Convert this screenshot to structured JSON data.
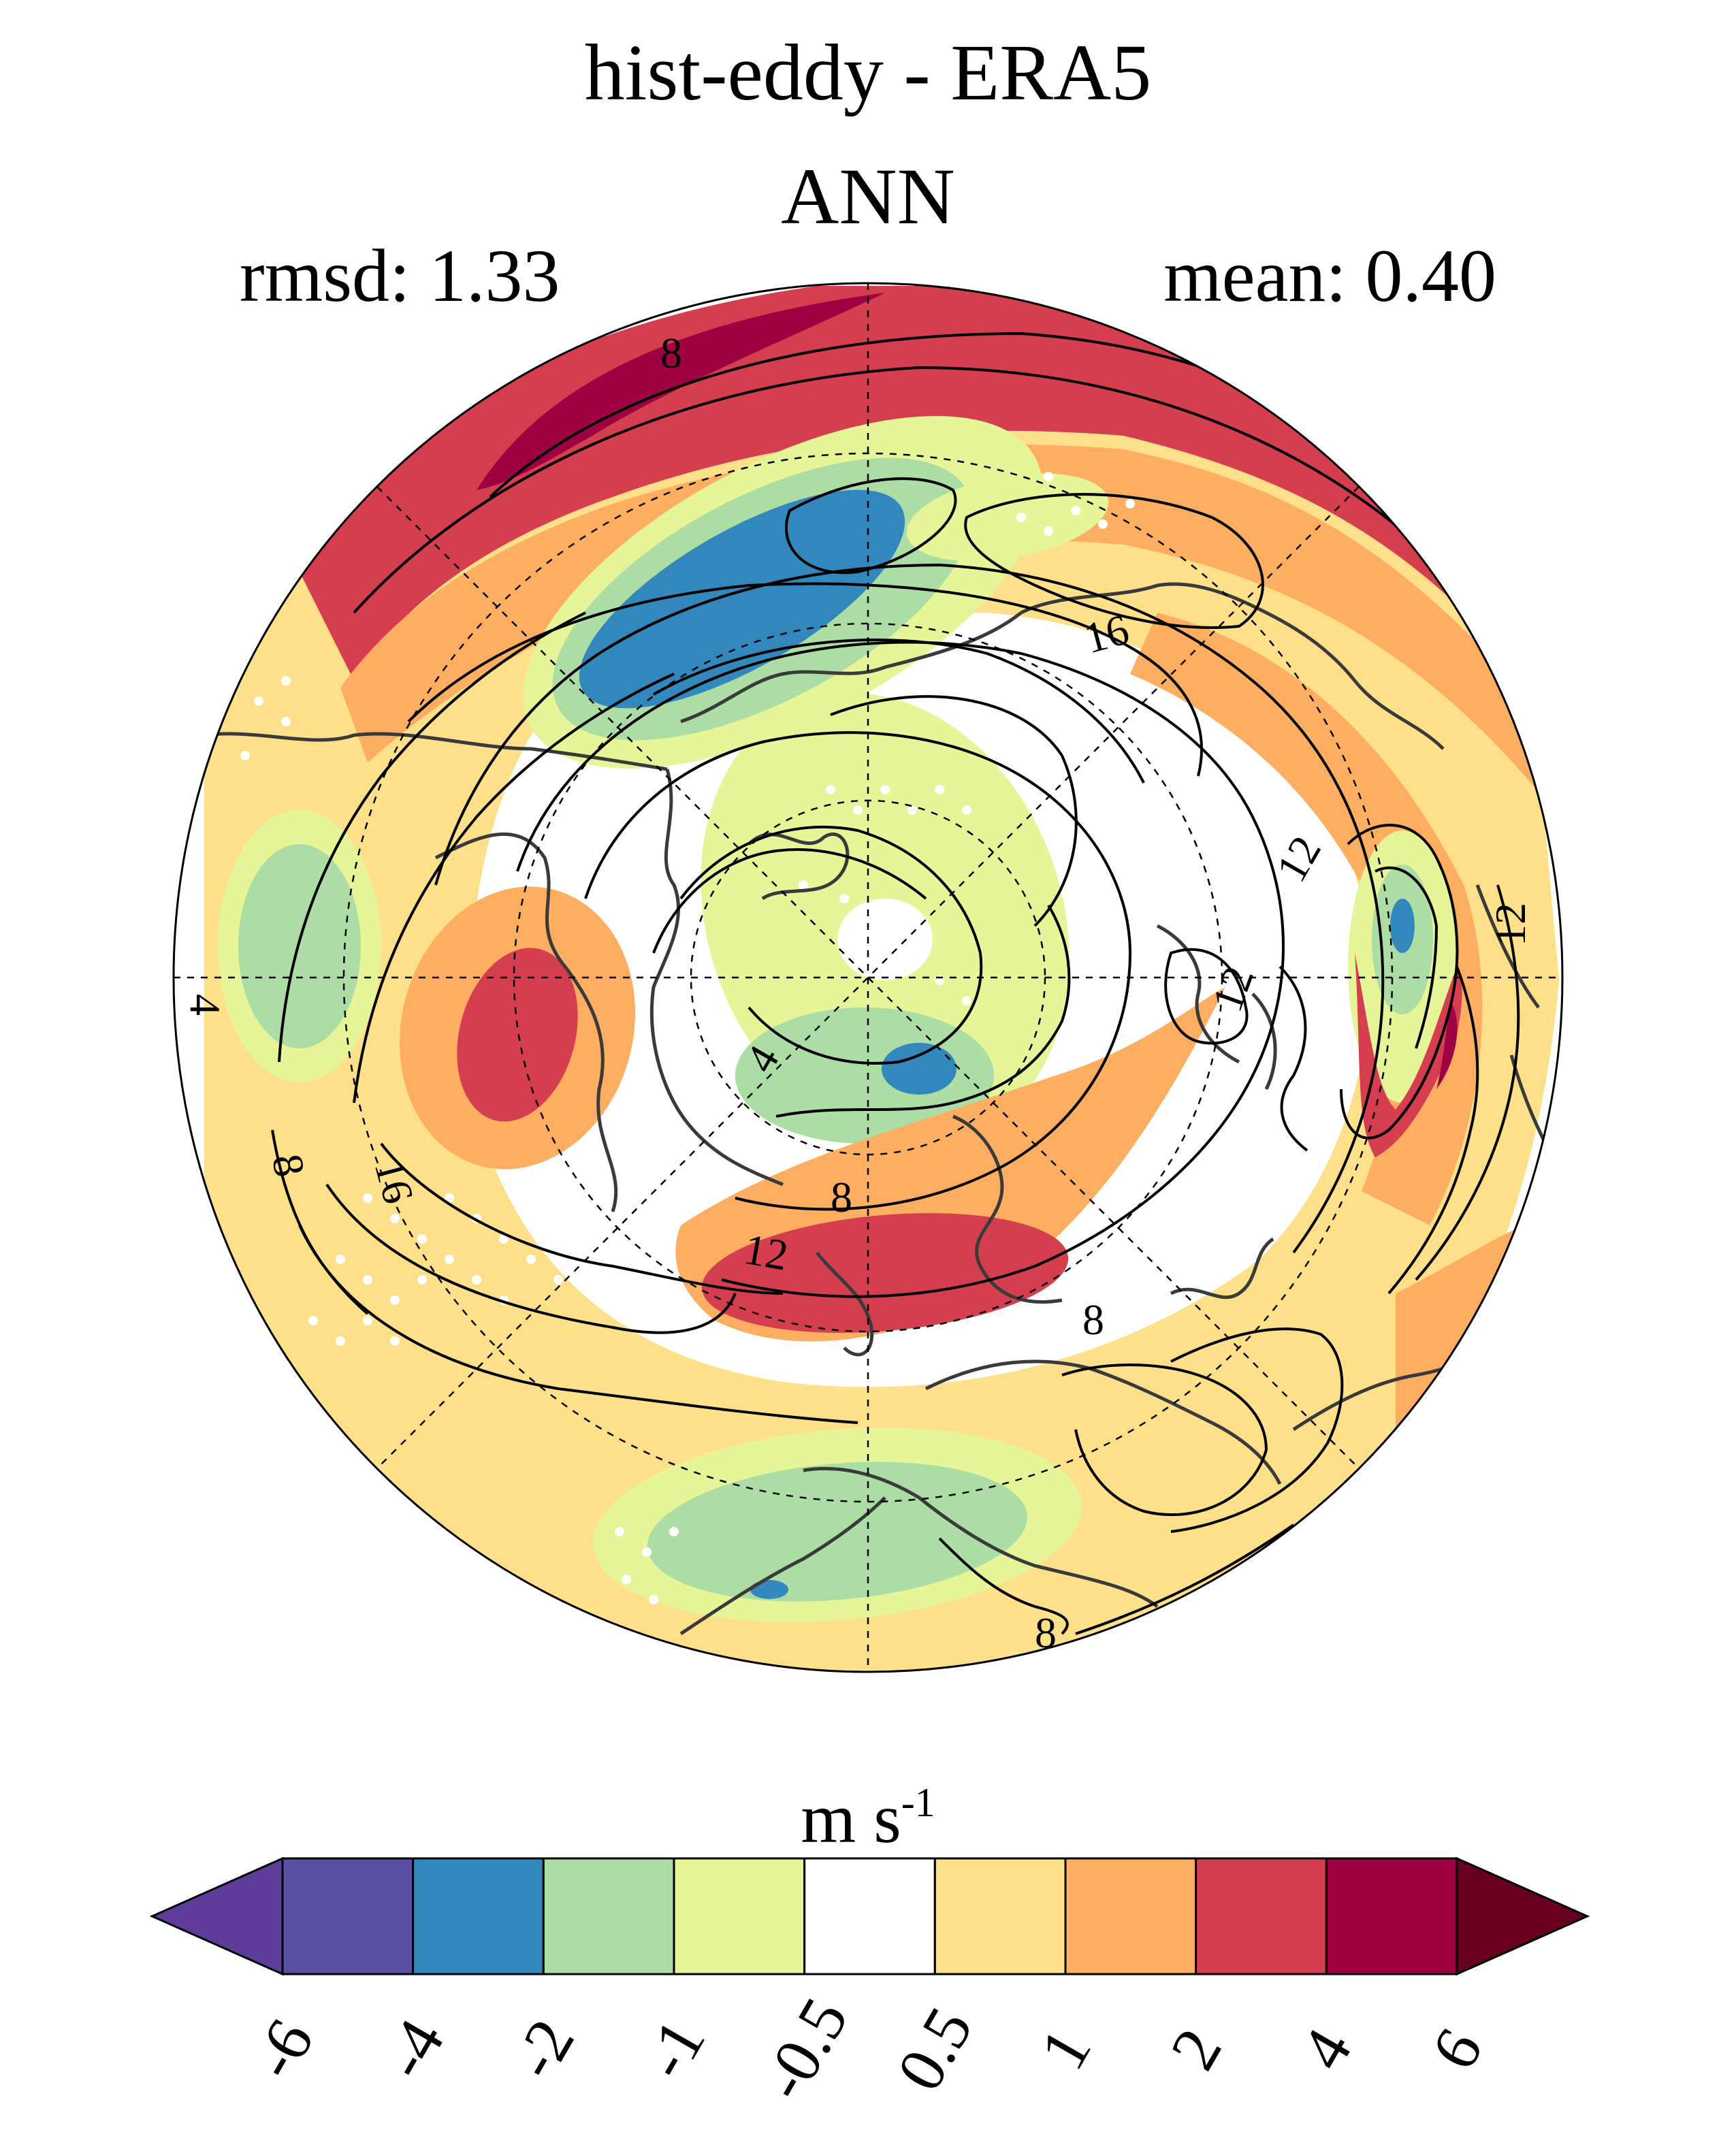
{
  "title": "hist-eddy - ERA5",
  "season": "ANN",
  "stats": {
    "rmsd_label": "rmsd: 1.33",
    "mean_label": "mean: 0.40"
  },
  "colorbar": {
    "units_base": "m s",
    "units_exponent": "-1",
    "levels": [
      "-6",
      "-4",
      "-2",
      "-1",
      "-0.5",
      "0.5",
      "1",
      "2",
      "4",
      "6"
    ],
    "colors": [
      "#5e3c99",
      "#5a4fa3",
      "#3288bd",
      "#abdda4",
      "#e6f598",
      "#ffffff",
      "#fee08b",
      "#fdae61",
      "#d53e4f",
      "#9e0142",
      "#67001f"
    ]
  },
  "contour_labels": [
    "8",
    "16",
    "12",
    "4",
    "8",
    "16",
    "8",
    "12",
    "4",
    "12",
    "8",
    "12",
    "8"
  ],
  "palette": {
    "dark_red": "#9e0142",
    "red": "#d53e4f",
    "orange": "#fdae61",
    "light_orange": "#fee08b",
    "light_green": "#e6f598",
    "green": "#abdda4",
    "blue": "#3288bd",
    "coast": "#3a3a3a",
    "contour": "#000000"
  }
}
